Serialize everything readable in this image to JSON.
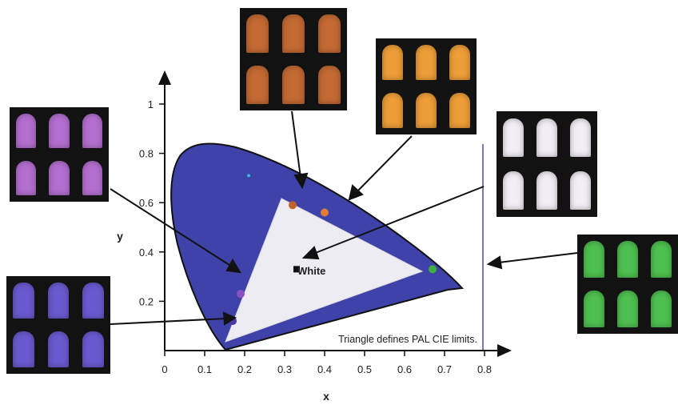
{
  "axes": {
    "x_label": "x",
    "y_label": "y",
    "x_ticks": [
      "0",
      "0.1",
      "0.2",
      "0.3",
      "0.4",
      "0.5",
      "0.6",
      "0.7",
      "0.8"
    ],
    "y_ticks": [
      "0.2",
      "0.4",
      "0.6",
      "0.8",
      "1"
    ]
  },
  "annotations": {
    "white_label": "White",
    "caption": "Triangle defines PAL CIE limits."
  },
  "points": [
    {
      "id": "red-phosphor",
      "x": 0.32,
      "y": 0.59,
      "color": "#c4622e"
    },
    {
      "id": "orange-phosphor",
      "x": 0.4,
      "y": 0.56,
      "color": "#e07d35"
    },
    {
      "id": "green-phosphor",
      "x": 0.67,
      "y": 0.33,
      "color": "#3cb043"
    },
    {
      "id": "violet-phosphor",
      "x": 0.19,
      "y": 0.23,
      "color": "#8a4fc0"
    },
    {
      "id": "blue-phosphor",
      "x": 0.17,
      "y": 0.12,
      "color": "#4a3aa0"
    },
    {
      "id": "white-point",
      "x": 0.33,
      "y": 0.33,
      "color": "#111111"
    },
    {
      "id": "cyan-dot",
      "x": 0.21,
      "y": 0.71,
      "color": "#38b6e8"
    }
  ],
  "pal_triangle": [
    [
      0.64,
      0.33
    ],
    [
      0.29,
      0.6
    ],
    [
      0.15,
      0.06
    ]
  ],
  "colors": {
    "gamut_fill": "#3f42a8",
    "triangle_fill": "#ececf2",
    "panel_bg": "#121212"
  },
  "panels": [
    {
      "id": "panel-violet",
      "color": "#b46fd0"
    },
    {
      "id": "panel-blue",
      "color": "#6a5ad0"
    },
    {
      "id": "panel-red",
      "color": "#c46a34"
    },
    {
      "id": "panel-orange",
      "color": "#ee9e38"
    },
    {
      "id": "panel-white",
      "color": "#f2eef5"
    },
    {
      "id": "panel-green",
      "color": "#4ec050"
    }
  ]
}
